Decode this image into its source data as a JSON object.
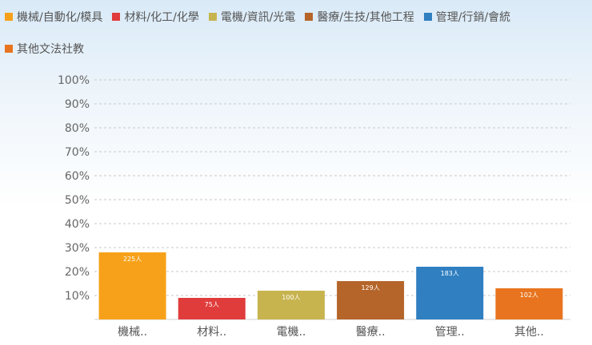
{
  "legend": [
    {
      "label": "機械/自動化/模具",
      "color": "#f7a11a"
    },
    {
      "label": "材料/化工/化學",
      "color": "#e03c3c"
    },
    {
      "label": "電機/資訊/光電",
      "color": "#c7b44f"
    },
    {
      "label": "醫療/生技/其他工程",
      "color": "#b5652a"
    },
    {
      "label": "管理/行銷/會統",
      "color": "#2f7fc1"
    },
    {
      "label": "其他文法社教",
      "color": "#e8741f"
    }
  ],
  "chart_data": {
    "type": "bar",
    "categories": [
      "機械..",
      "材料..",
      "電機..",
      "醫療..",
      "管理..",
      "其他.."
    ],
    "values": [
      28,
      9,
      12,
      16,
      22,
      13
    ],
    "data_labels": [
      "225人",
      "75人",
      "100人",
      "129人",
      "183人",
      "102人"
    ],
    "colors": [
      "#f7a11a",
      "#e03c3c",
      "#c7b44f",
      "#b5652a",
      "#2f7fc1",
      "#e8741f"
    ],
    "y_ticks": [
      "10%",
      "20%",
      "30%",
      "40%",
      "50%",
      "60%",
      "70%",
      "80%",
      "90%",
      "100%"
    ],
    "ylim": [
      0,
      100
    ],
    "grid": true,
    "legend_position": "top"
  }
}
